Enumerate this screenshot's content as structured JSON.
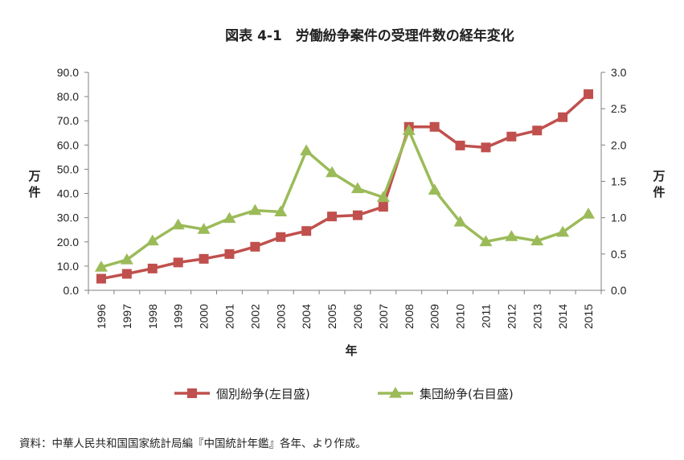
{
  "chart_data": {
    "type": "line",
    "title": "図表 4-1　労働紛争案件の受理件数の経年変化",
    "xlabel": "年",
    "ylabel_left": "万件",
    "ylabel_right": "万件",
    "x": [
      "1996",
      "1997",
      "1998",
      "1999",
      "2000",
      "2001",
      "2002",
      "2003",
      "2004",
      "2005",
      "2006",
      "2007",
      "2008",
      "2009",
      "2010",
      "2011",
      "2012",
      "2013",
      "2014",
      "2015"
    ],
    "y_left_ticks": [
      "0.0",
      "10.0",
      "20.0",
      "30.0",
      "40.0",
      "50.0",
      "60.0",
      "70.0",
      "80.0",
      "90.0"
    ],
    "y_right_ticks": [
      "0.0",
      "0.5",
      "1.0",
      "1.5",
      "2.0",
      "2.5",
      "3.0"
    ],
    "ylim_left": [
      0,
      90
    ],
    "ylim_right": [
      0,
      3
    ],
    "series": [
      {
        "name": "個別紛争(左目盛)",
        "axis": "left",
        "color": "#c0504d",
        "marker": "square",
        "values": [
          4.8,
          6.8,
          9.0,
          11.5,
          13.0,
          15.0,
          18.0,
          22.0,
          24.5,
          30.5,
          31.0,
          34.5,
          67.5,
          67.5,
          59.8,
          59.0,
          63.5,
          66.0,
          71.5,
          81.0
        ]
      },
      {
        "name": "集団紛争(右目盛)",
        "axis": "right",
        "color": "#9bbb59",
        "marker": "triangle",
        "values": [
          0.32,
          0.42,
          0.68,
          0.9,
          0.84,
          0.99,
          1.1,
          1.08,
          1.92,
          1.62,
          1.4,
          1.28,
          2.2,
          1.38,
          0.94,
          0.67,
          0.74,
          0.68,
          0.8,
          1.05
        ]
      }
    ],
    "legend_position": "bottom",
    "grid": false
  },
  "source_note": "資料：中華人民共和国国家統計局編『中国統計年鑑』各年、より作成。"
}
